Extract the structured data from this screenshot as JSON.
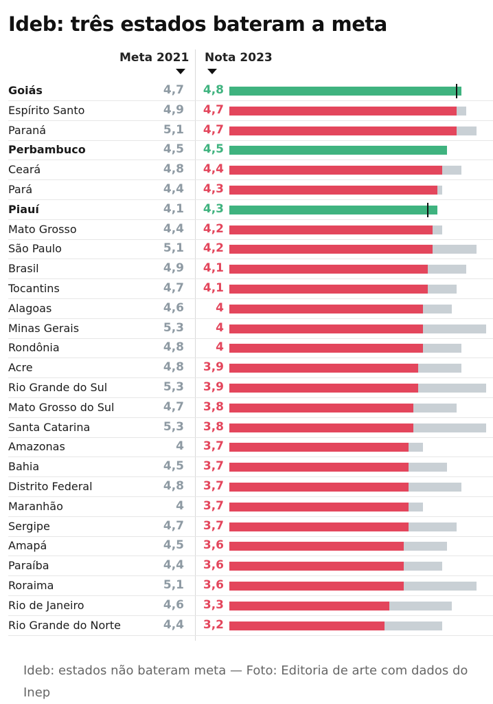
{
  "title": "Ideb: três estados bateram a meta",
  "columns": {
    "meta": "Meta 2021",
    "nota": "Nota 2023"
  },
  "caption": "Ideb: estados não bateram meta — Foto: Editoria de arte com dados do Inep",
  "colors": {
    "above": "#3fb37f",
    "below": "#e3465c",
    "meta_bar": "#c9d0d5",
    "meta_text": "#8e9aa3"
  },
  "chart_data": {
    "type": "bar",
    "orientation": "horizontal",
    "title": "Ideb: três estados bateram a meta",
    "categories": [
      "Goiás",
      "Espírito Santo",
      "Paraná",
      "Perbambuco",
      "Ceará",
      "Pará",
      "Piauí",
      "Mato Grosso",
      "São Paulo",
      "Brasil",
      "Tocantins",
      "Alagoas",
      "Minas Gerais",
      "Rondônia",
      "Acre",
      "Rio Grande do Sul",
      "Mato Grosso do Sul",
      "Santa Catarina",
      "Amazonas",
      "Bahia",
      "Distrito Federal",
      "Maranhão",
      "Sergipe",
      "Amapá",
      "Paraíba",
      "Roraima",
      "Rio de Janeiro",
      "Rio Grande do Norte"
    ],
    "series": [
      {
        "name": "Meta 2021",
        "values": [
          4.7,
          4.9,
          5.1,
          4.5,
          4.8,
          4.4,
          4.1,
          4.4,
          5.1,
          4.9,
          4.7,
          4.6,
          5.3,
          4.8,
          4.8,
          5.3,
          4.7,
          5.3,
          4,
          4.5,
          4.8,
          4,
          4.7,
          4.5,
          4.4,
          5.1,
          4.6,
          4.4
        ]
      },
      {
        "name": "Nota 2023",
        "values": [
          4.8,
          4.7,
          4.7,
          4.5,
          4.4,
          4.3,
          4.3,
          4.2,
          4.2,
          4.1,
          4.1,
          4,
          4,
          4,
          3.9,
          3.9,
          3.8,
          3.8,
          3.7,
          3.7,
          3.7,
          3.7,
          3.7,
          3.6,
          3.6,
          3.6,
          3.3,
          3.2
        ]
      }
    ],
    "meta_labels": [
      "4,7",
      "4,9",
      "5,1",
      "4,5",
      "4,8",
      "4,4",
      "4,1",
      "4,4",
      "5,1",
      "4,9",
      "4,7",
      "4,6",
      "5,3",
      "4,8",
      "4,8",
      "5,3",
      "4,7",
      "5,3",
      "4",
      "4,5",
      "4,8",
      "4",
      "4,7",
      "4,5",
      "4,4",
      "5,1",
      "4,6",
      "4,4"
    ],
    "nota_labels": [
      "4,8",
      "4,7",
      "4,7",
      "4,5",
      "4,4",
      "4,3",
      "4,3",
      "4,2",
      "4,2",
      "4,1",
      "4,1",
      "4",
      "4",
      "4",
      "3,9",
      "3,9",
      "3,8",
      "3,8",
      "3,7",
      "3,7",
      "3,7",
      "3,7",
      "3,7",
      "3,6",
      "3,6",
      "3,6",
      "3,3",
      "3,2"
    ],
    "met_goal": [
      true,
      false,
      false,
      true,
      false,
      false,
      true,
      false,
      false,
      false,
      false,
      false,
      false,
      false,
      false,
      false,
      false,
      false,
      false,
      false,
      false,
      false,
      false,
      false,
      false,
      false,
      false,
      false
    ]
  }
}
